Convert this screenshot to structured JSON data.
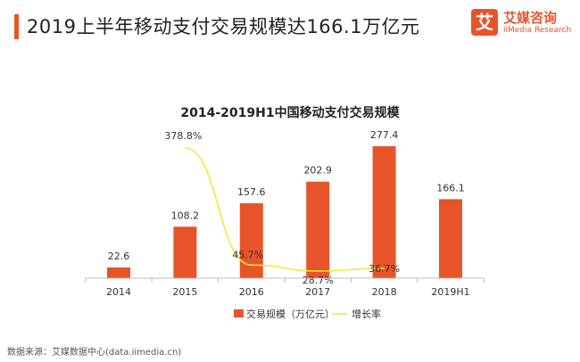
{
  "headline": "2019上半年移动支付交易规模达166.1万亿元",
  "logo": {
    "mark": "艾",
    "name": "艾媒咨询",
    "en": "iiMedia Research"
  },
  "source": "数据来源：艾媒数据中心(data.iimedia.cn)",
  "colors": {
    "accent": "#e8542a",
    "bar": "#e8542a",
    "line": "#f2ea3d"
  },
  "chart_data": {
    "type": "bar",
    "title": "2014-2019H1中国移动支付交易规模",
    "categories": [
      "2014",
      "2015",
      "2016",
      "2017",
      "2018",
      "2019H1"
    ],
    "series": [
      {
        "name": "交易规模（万亿元）",
        "type": "bar",
        "values": [
          22.6,
          108.2,
          157.6,
          202.9,
          277.4,
          166.1
        ],
        "labels": [
          "22.6",
          "108.2",
          "157.6",
          "202.9",
          "277.4",
          "166.1"
        ]
      },
      {
        "name": "增长率",
        "type": "line",
        "x": [
          "2015",
          "2016",
          "2017",
          "2018"
        ],
        "values": [
          378.8,
          45.7,
          28.7,
          36.7
        ],
        "labels": [
          "378.8%",
          "45.7%",
          "28.7%",
          "36.7%"
        ]
      }
    ],
    "legend_position": "bottom",
    "grid": false
  }
}
